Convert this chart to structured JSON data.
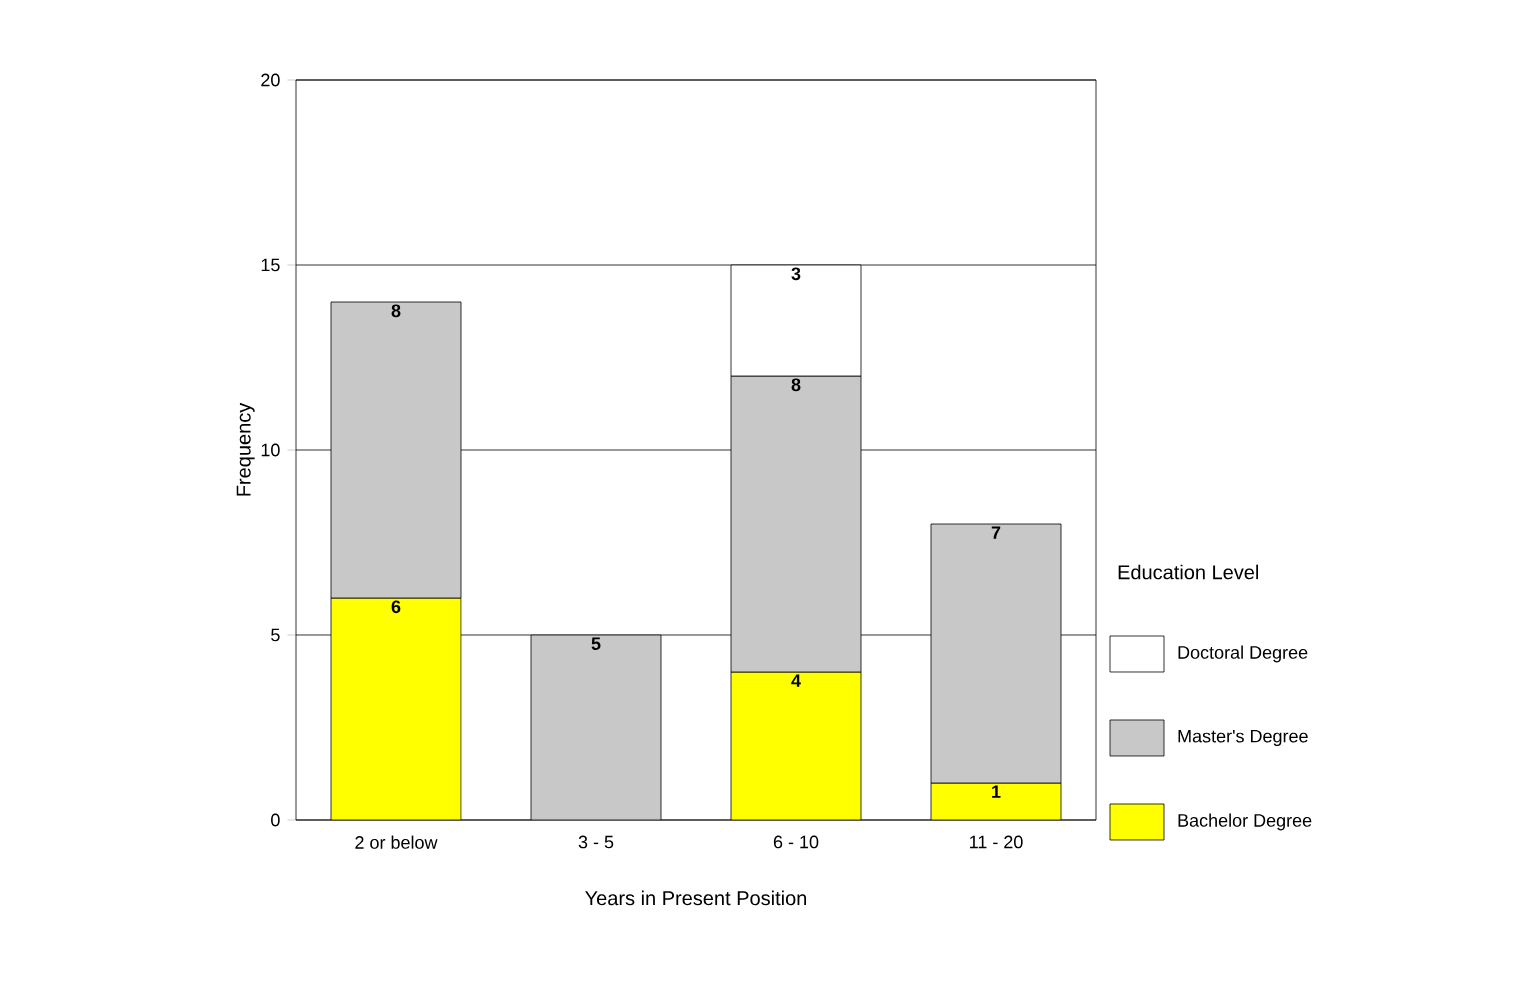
{
  "chart_data": {
    "type": "bar",
    "stacked": true,
    "xlabel": "Years in Present Position",
    "ylabel": "Frequency",
    "legend_title": "Education Level",
    "legend": "right",
    "grid": "y",
    "categories": [
      "2 or below",
      "3 - 5",
      "6 - 10",
      "11 - 20"
    ],
    "ylim": [
      0,
      20
    ],
    "yticks": [
      0,
      5,
      10,
      15,
      20
    ],
    "series": [
      {
        "name": "Bachelor Degree",
        "color": "#ffff00",
        "values": [
          6,
          0,
          4,
          1
        ],
        "value_labels": [
          "6",
          null,
          "4",
          "1"
        ]
      },
      {
        "name": "Master's Degree",
        "color": "#c8c8c8",
        "values": [
          8,
          5,
          8,
          7
        ],
        "value_labels": [
          "8",
          "5",
          "8",
          "7"
        ]
      },
      {
        "name": "Doctoral Degree",
        "color": "#ffffff",
        "values": [
          0,
          0,
          3,
          0
        ],
        "value_labels": [
          null,
          null,
          "3",
          null
        ]
      }
    ]
  }
}
